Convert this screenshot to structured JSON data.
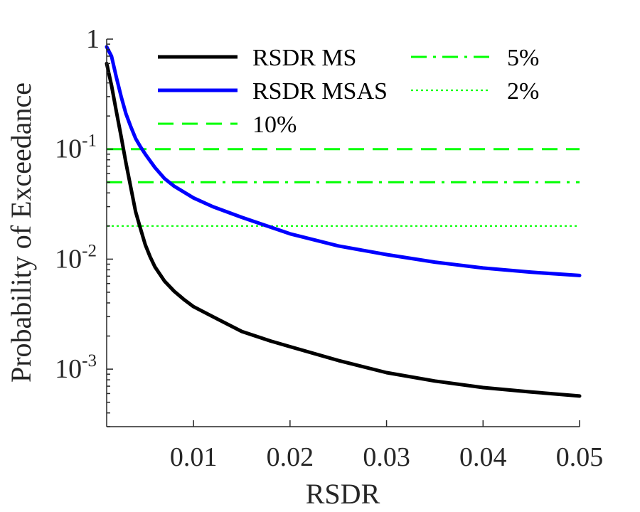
{
  "chart_data": {
    "type": "line",
    "xlabel": "RSDR",
    "ylabel": "Probability of Exceedance",
    "xlim": [
      0.001,
      0.05
    ],
    "ylim": [
      0.0003,
      1
    ],
    "yscale": "log",
    "grid": false,
    "legend_position": "top",
    "x_ticks": [
      {
        "value": 0.01,
        "label": "0.01"
      },
      {
        "value": 0.02,
        "label": "0.02"
      },
      {
        "value": 0.03,
        "label": "0.03"
      },
      {
        "value": 0.04,
        "label": "0.04"
      },
      {
        "value": 0.05,
        "label": "0.05"
      }
    ],
    "y_ticks": [
      {
        "value": 1,
        "base": "1",
        "exp": ""
      },
      {
        "value": 0.1,
        "base": "10",
        "exp": "-1"
      },
      {
        "value": 0.01,
        "base": "10",
        "exp": "-2"
      },
      {
        "value": 0.001,
        "base": "10",
        "exp": "-3"
      }
    ],
    "series": [
      {
        "name": "RSDR MS",
        "color": "#000000",
        "style": "solid",
        "x": [
          0.001,
          0.0015,
          0.002,
          0.0025,
          0.003,
          0.0035,
          0.004,
          0.0045,
          0.005,
          0.0055,
          0.006,
          0.007,
          0.008,
          0.009,
          0.01,
          0.012,
          0.015,
          0.018,
          0.02,
          0.025,
          0.03,
          0.035,
          0.04,
          0.045,
          0.05
        ],
        "y": [
          0.6,
          0.38,
          0.22,
          0.13,
          0.075,
          0.045,
          0.027,
          0.019,
          0.0135,
          0.0105,
          0.0085,
          0.0063,
          0.0051,
          0.0043,
          0.0037,
          0.003,
          0.0022,
          0.0018,
          0.0016,
          0.0012,
          0.00093,
          0.00078,
          0.00068,
          0.00062,
          0.00057
        ]
      },
      {
        "name": "RSDR MSAS",
        "color": "#0000ff",
        "style": "solid",
        "x": [
          0.001,
          0.0015,
          0.002,
          0.0025,
          0.003,
          0.0035,
          0.004,
          0.0045,
          0.005,
          0.006,
          0.007,
          0.008,
          0.01,
          0.012,
          0.015,
          0.018,
          0.02,
          0.025,
          0.03,
          0.035,
          0.04,
          0.045,
          0.05
        ],
        "y": [
          0.85,
          0.7,
          0.45,
          0.3,
          0.21,
          0.16,
          0.125,
          0.105,
          0.09,
          0.068,
          0.054,
          0.046,
          0.036,
          0.03,
          0.024,
          0.0195,
          0.017,
          0.0132,
          0.011,
          0.0094,
          0.0083,
          0.0076,
          0.0071
        ]
      },
      {
        "name": "10%",
        "color": "#00ff00",
        "style": "dashed",
        "x": [
          0.001,
          0.05
        ],
        "y": [
          0.1,
          0.1
        ]
      },
      {
        "name": "5%",
        "color": "#00ff00",
        "style": "dashdot",
        "x": [
          0.001,
          0.05
        ],
        "y": [
          0.05,
          0.05
        ]
      },
      {
        "name": "2%",
        "color": "#00ff00",
        "style": "dotted",
        "x": [
          0.001,
          0.05
        ],
        "y": [
          0.02,
          0.02
        ]
      }
    ]
  }
}
